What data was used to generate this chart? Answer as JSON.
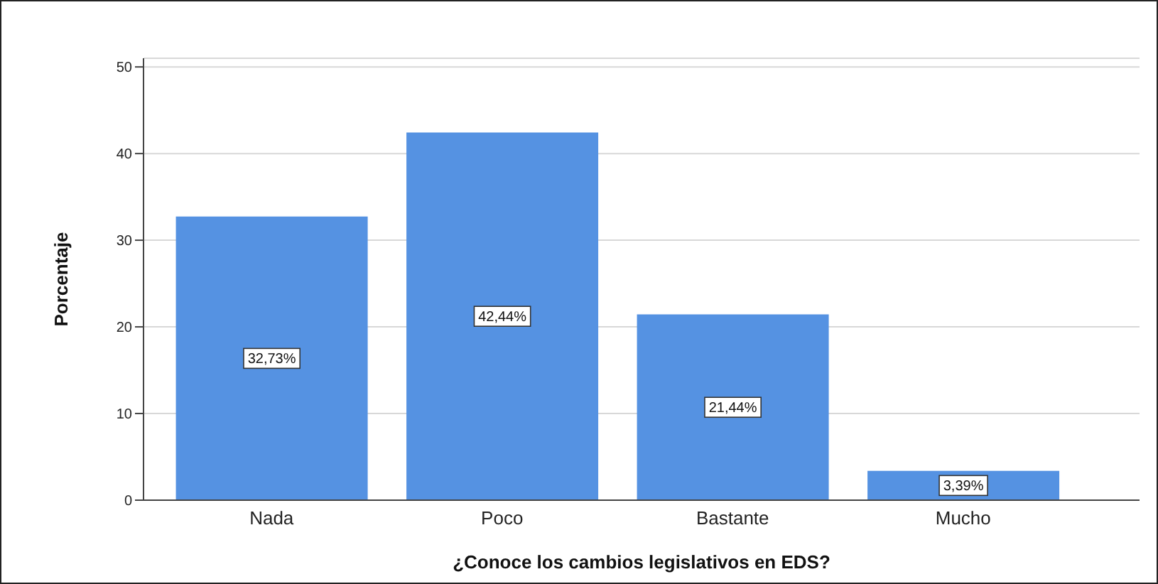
{
  "chart_data": {
    "type": "bar",
    "xlabel": "¿Conoce los cambios legislativos en EDS?",
    "ylabel": "Porcentaje",
    "categories": [
      "Nada",
      "Poco",
      "Bastante",
      "Mucho"
    ],
    "values": [
      32.73,
      42.44,
      21.44,
      3.39
    ],
    "value_labels": [
      "32,73%",
      "42,44%",
      "21,44%",
      "3,39%"
    ],
    "color": "#5592e2",
    "ylim": [
      0,
      51
    ],
    "yticks": [
      0,
      10,
      20,
      30,
      40,
      50
    ],
    "grid": "y",
    "legend": false
  }
}
